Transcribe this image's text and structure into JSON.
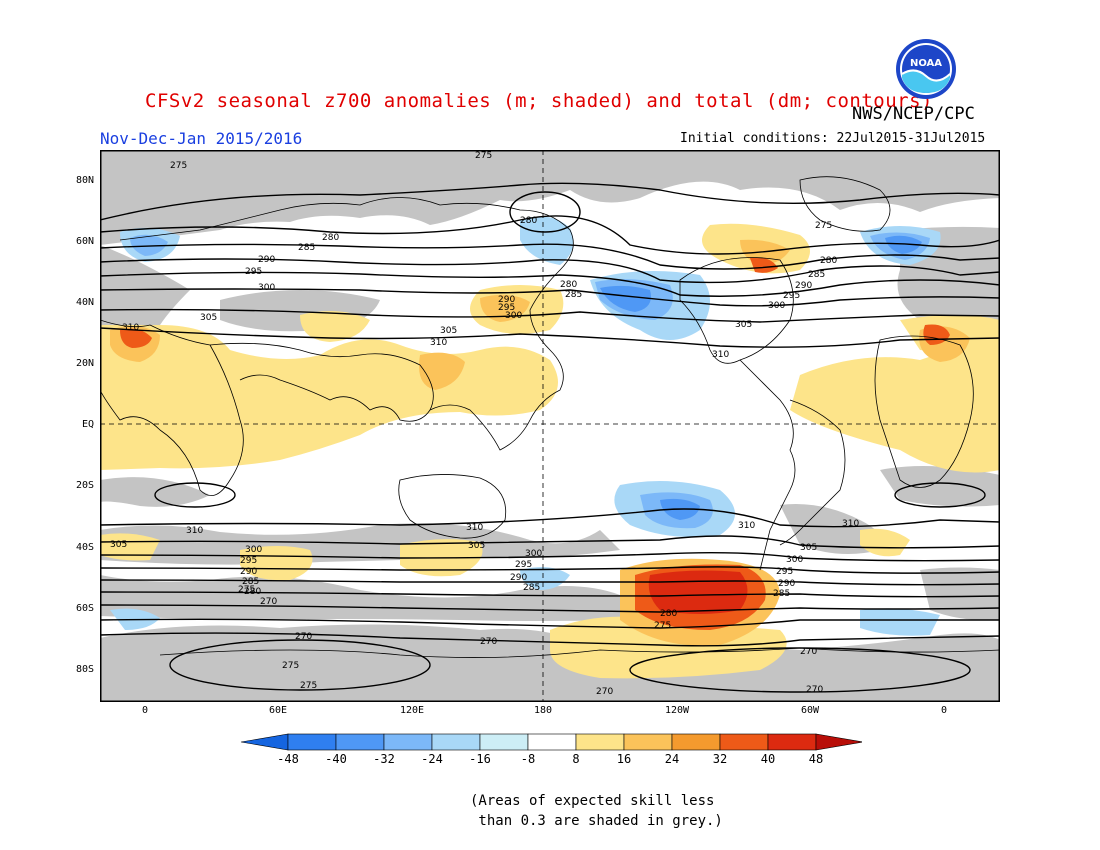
{
  "header": {
    "title": "CFSv2 seasonal z700 anomalies (m; shaded) and total (dm; contours)",
    "agency": "NWS/NCEP/CPC",
    "period": "Nov-Dec-Jan 2015/2016",
    "initial_conditions": "Initial conditions: 22Jul2015-31Jul2015",
    "logo_text": "NOAA"
  },
  "map": {
    "lat_labels": [
      "80N",
      "60N",
      "40N",
      "20N",
      "EQ",
      "20S",
      "40S",
      "60S",
      "80S"
    ],
    "lon_labels": [
      "0",
      "60E",
      "120E",
      "180",
      "120W",
      "60W",
      "0"
    ],
    "contour_labels": [
      "275",
      "280",
      "285",
      "290",
      "295",
      "300",
      "305",
      "310",
      "270"
    ]
  },
  "colorbar": {
    "labels": [
      "-48",
      "-40",
      "-32",
      "-24",
      "-16",
      "-8",
      "8",
      "16",
      "24",
      "32",
      "40",
      "48"
    ],
    "colors": [
      "#1565e0",
      "#2f7ff0",
      "#4f98f5",
      "#7cb8f8",
      "#a9d8f7",
      "#cdeef6",
      "#ffffff",
      "#fde48a",
      "#fbc35a",
      "#f49a2e",
      "#ee5a18",
      "#dc2a10",
      "#b80e08"
    ]
  },
  "note": "(Areas of expected skill less\n than 0.3 are shaded in grey.)"
}
